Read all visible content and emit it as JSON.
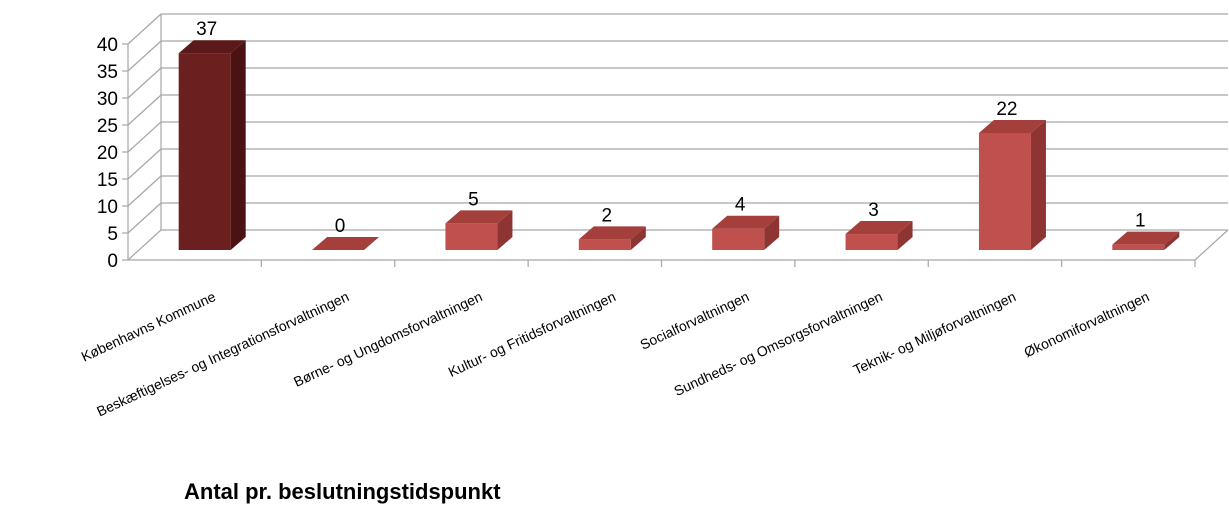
{
  "chart_data": {
    "type": "bar",
    "title": "Antal pr. beslutningstidspunkt",
    "categories": [
      "Københavns Kommune",
      "Beskæftigelses- og Integrationsforvaltningen",
      "Børne- og Ungdomsforvaltningen",
      "Kultur- og Fritidsforvaltningen",
      "Socialforvaltningen",
      "Sundheds- og Omsorgsforvaltningen",
      "Teknik- og Miljøforvaltningen",
      "Økonomiforvaltningen"
    ],
    "values": [
      37,
      0,
      5,
      2,
      4,
      3,
      22,
      1
    ],
    "yticks": [
      "0",
      "5",
      "10",
      "15",
      "20",
      "25",
      "30",
      "35",
      "40"
    ],
    "ylim": [
      0,
      40
    ],
    "grid": true,
    "three_d": true,
    "colors": {
      "highlight_front": "#6B1F1F",
      "highlight_side": "#4A1212",
      "highlight_top": "#5C1919",
      "bar_front": "#C0504D",
      "bar_side": "#8E3432",
      "bar_top": "#A43F3C",
      "grid": "#A6A6A6"
    }
  }
}
